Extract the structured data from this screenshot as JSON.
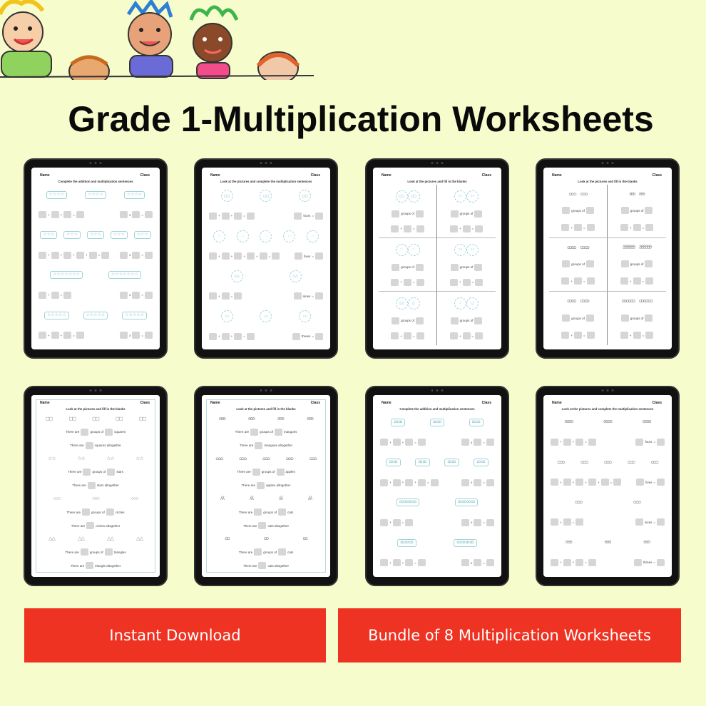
{
  "title": "Grade 1-Multiplication Worksheets",
  "colors": {
    "background": "#f6fccb",
    "button": "#ee3322",
    "picture_outline": "#9fd3d8"
  },
  "buttons": {
    "instant_download": "Instant Download",
    "bundle": "Bundle of 8 Multiplication Worksheets"
  },
  "worksheets": [
    {
      "name": "Name",
      "class": "Class",
      "instruction": "Complete the addition and multiplication sentences",
      "layout": "rows",
      "rows": [
        {
          "pics": [
            "☆☆☆☆",
            "☆☆☆☆",
            "☆☆☆☆"
          ],
          "style": "box"
        },
        {
          "eq": [
            [
              "□",
              "+",
              "□",
              "+",
              "□",
              "=",
              "□"
            ],
            [
              "□",
              "x",
              "□",
              "=",
              "□"
            ]
          ]
        },
        {
          "pics": [
            "☆☆☆",
            "☆☆☆",
            "☆☆☆",
            "☆☆☆",
            "☆☆☆"
          ],
          "style": "box"
        },
        {
          "eq": [
            [
              "□",
              "+",
              "□",
              "+",
              "□",
              "+",
              "□",
              "+",
              "□",
              "=",
              "□"
            ],
            [
              "□",
              "x",
              "□",
              "=",
              "□"
            ]
          ]
        },
        {
          "pics": [
            "☆☆☆☆☆☆☆",
            "☆☆☆☆☆☆☆"
          ],
          "style": "box"
        },
        {
          "eq": [
            [
              "□",
              "+",
              "□",
              "=",
              "□"
            ],
            [
              "□",
              "x",
              "□",
              "=",
              "□"
            ]
          ]
        },
        {
          "pics": [
            "☆☆☆☆☆",
            "☆☆☆☆☆",
            "☆☆☆☆☆"
          ],
          "style": "box"
        },
        {
          "eq": [
            [
              "□",
              "+",
              "□",
              "+",
              "□",
              "=",
              "□"
            ],
            [
              "□",
              "x",
              "□",
              "=",
              "□"
            ]
          ]
        }
      ]
    },
    {
      "name": "Name",
      "class": "Class",
      "instruction": "Look at the pictures and complete the multiplication sentences",
      "layout": "rows",
      "rows": [
        {
          "pics": [
            "◻◻",
            "◻◻",
            "◻◻"
          ],
          "style": "circle"
        },
        {
          "eq": [
            [
              "□",
              "+",
              "□",
              "+",
              "□",
              "=",
              "□"
            ],
            [
              "□",
              "fours",
              "=",
              "□"
            ]
          ]
        },
        {
          "pics": [
            "∷",
            "∷",
            "∷",
            "∷",
            "∷"
          ],
          "style": "circle"
        },
        {
          "eq": [
            [
              "□",
              "+",
              "□",
              "+",
              "□",
              "+",
              "□",
              "+",
              "□",
              "=",
              "□"
            ],
            [
              "□",
              "fives",
              "=",
              "□"
            ]
          ]
        },
        {
          "pics": [
            "△△",
            "△△"
          ],
          "style": "circle"
        },
        {
          "eq": [
            [
              "□",
              "+",
              "□",
              "=",
              "□"
            ],
            [
              "□",
              "nines",
              "=",
              "□"
            ]
          ]
        },
        {
          "pics": [
            "○○",
            "○○",
            "○○"
          ],
          "style": "circle"
        },
        {
          "eq": [
            [
              "□",
              "+",
              "□",
              "+",
              "□",
              "=",
              "□"
            ],
            [
              "□",
              "threes",
              "=",
              "□"
            ]
          ]
        }
      ]
    },
    {
      "name": "Name",
      "class": "Class",
      "instruction": "Look at the pictures and fill in the blanks",
      "layout": "grid",
      "cell_pics": [
        [
          "◻◻",
          "◻◻"
        ],
        [
          "○○",
          "○○"
        ],
        [
          "∷",
          "∷"
        ],
        [
          "○○",
          "○○"
        ],
        [
          "△△",
          "△"
        ],
        [
          "○",
          "◻"
        ]
      ],
      "style": "circle",
      "cell_eq": [
        [
          "□",
          "groups of",
          "□"
        ],
        [
          "□",
          "+",
          "□",
          "=",
          "□"
        ]
      ]
    },
    {
      "name": "Name",
      "class": "Class",
      "instruction": "Look at the pictures and fill in the blanks",
      "layout": "grid",
      "cell_pics": [
        [
          "ᴑᴑᴑ",
          "ᴑᴑᴑ"
        ],
        [
          "ʚʚʚ",
          "ʚʚʚ"
        ],
        [
          "ꝏꝏ",
          "ꝏꝏ"
        ],
        [
          "ϑϑϑϑϑϑ",
          "ϑϑϑϑϑϑ"
        ],
        [
          "ꝏꝏ",
          "ꝏꝏ"
        ],
        [
          "ꝏꝏꝏ",
          "ꝏꝏꝏ"
        ]
      ],
      "style": "grey",
      "cell_eq": [
        [
          "□",
          "groups of",
          "□"
        ],
        [
          "□",
          "+",
          "□",
          "=",
          "□"
        ]
      ]
    },
    {
      "name": "Name",
      "class": "Class",
      "instruction": "Look at the pictures and fill in the blanks",
      "layout": "rows",
      "framed": true,
      "rows": [
        {
          "pics": [
            "◻◻",
            "◻◻",
            "◻◻",
            "◻◻",
            "◻◻"
          ],
          "style": "plain"
        },
        {
          "eq": [
            [
              "There are",
              "□",
              "groups of",
              "□",
              "squares"
            ]
          ]
        },
        {
          "eq": [
            [
              "There are",
              "□",
              "squares  altogether"
            ]
          ]
        },
        {
          "pics": [
            "☆☆",
            "☆☆",
            "☆☆",
            "☆☆"
          ],
          "style": "plain"
        },
        {
          "eq": [
            [
              "There are",
              "□",
              "groups of",
              "□",
              "stars"
            ]
          ]
        },
        {
          "eq": [
            [
              "There are",
              "□",
              "stars  altogether"
            ]
          ]
        },
        {
          "pics": [
            "○○○",
            "○○○",
            "○○○"
          ],
          "style": "plain"
        },
        {
          "eq": [
            [
              "There are",
              "□",
              "groups of",
              "□",
              "circles"
            ]
          ]
        },
        {
          "eq": [
            [
              "There are",
              "□",
              "circles  altogether"
            ]
          ]
        },
        {
          "pics": [
            "△△",
            "△△",
            "△△",
            "△△"
          ],
          "style": "plain"
        },
        {
          "eq": [
            [
              "There are",
              "□",
              "groups of",
              "□",
              "triangles"
            ]
          ]
        },
        {
          "eq": [
            [
              "There are",
              "□",
              "triangle  altogether"
            ]
          ]
        }
      ]
    },
    {
      "name": "Name",
      "class": "Class",
      "instruction": "Look at the pictures and fill in the blanks",
      "layout": "rows",
      "framed": true,
      "rows": [
        {
          "pics": [
            "ϭϭϭ",
            "ϭϭϭ",
            "ϭϭϭ",
            "ϭϭϭ"
          ],
          "style": "grey"
        },
        {
          "eq": [
            [
              "There are",
              "□",
              "groups of",
              "□",
              "mangoes"
            ]
          ]
        },
        {
          "eq": [
            [
              "There are",
              "□",
              "mangoes  altogether"
            ]
          ]
        },
        {
          "pics": [
            "ᴑᴑᴑ",
            "ᴑᴑᴑ",
            "ᴑᴑᴑ",
            "ᴑᴑᴑ",
            "ᴑᴑᴑ"
          ],
          "style": "grey"
        },
        {
          "eq": [
            [
              "There are",
              "□",
              "groups of",
              "□",
              "apples"
            ]
          ]
        },
        {
          "eq": [
            [
              "There are",
              "□",
              "apples  altogether"
            ]
          ]
        },
        {
          "pics": [
            "ʎʎ",
            "ʎʎ",
            "ʎʎ",
            "ʎʎ"
          ],
          "style": "grey"
        },
        {
          "eq": [
            [
              "There are",
              "□",
              "groups of",
              "□",
              "cats"
            ]
          ]
        },
        {
          "eq": [
            [
              "There are",
              "□",
              "cats  altogether"
            ]
          ]
        },
        {
          "pics": [
            "ꝏ",
            "ꝏ",
            "ꝏ"
          ],
          "style": "grey"
        },
        {
          "eq": [
            [
              "There are",
              "□",
              "groups of",
              "□",
              "cats"
            ]
          ]
        },
        {
          "eq": [
            [
              "There are",
              "□",
              "cats  altogether"
            ]
          ]
        }
      ]
    },
    {
      "name": "Name",
      "class": "Class",
      "instruction": "Complete the addition and multiplication sentences",
      "layout": "rows",
      "rows": [
        {
          "pics": [
            "ꝏꝏ",
            "ꝏꝏ",
            "ꝏꝏ"
          ],
          "style": "box"
        },
        {
          "eq": [
            [
              "□",
              "+",
              "□",
              "+",
              "□",
              "=",
              "□"
            ],
            [
              "□",
              "x",
              "□",
              "=",
              "□"
            ]
          ]
        },
        {
          "pics": [
            "ꝏꝏ",
            "ꝏꝏ",
            "ꝏꝏ",
            "ꝏꝏ"
          ],
          "style": "box"
        },
        {
          "eq": [
            [
              "□",
              "+",
              "□",
              "+",
              "□",
              "+",
              "□",
              "=",
              "□"
            ],
            [
              "□",
              "x",
              "□",
              "=",
              "□"
            ]
          ]
        },
        {
          "pics": [
            "ꝏꝏꝏꝏ",
            "ꝏꝏꝏꝏ"
          ],
          "style": "box"
        },
        {
          "eq": [
            [
              "□",
              "+",
              "□",
              "=",
              "□"
            ],
            [
              "□",
              "x",
              "□",
              "=",
              "□"
            ]
          ]
        },
        {
          "pics": [
            "ꝏꝏꝏ",
            "ꝏꝏꝏꝏ"
          ],
          "style": "box"
        },
        {
          "eq": [
            [
              "□",
              "+",
              "□",
              "+",
              "□",
              "=",
              "□"
            ],
            [
              "□",
              "x",
              "□",
              "=",
              "□"
            ]
          ]
        }
      ]
    },
    {
      "name": "Name",
      "class": "Class",
      "instruction": "Look at the pictures and complete the multiplication sentences",
      "layout": "rows",
      "rows": [
        {
          "pics": [
            "ϭϭϭϭ",
            "ϭϭϭϭ",
            "ϭϭϭϭ"
          ],
          "style": "grey"
        },
        {
          "eq": [
            [
              "□",
              "+",
              "□",
              "+",
              "□",
              "=",
              "□"
            ],
            [
              "□",
              "fours",
              "=",
              "□"
            ]
          ]
        },
        {
          "pics": [
            "ᴑᴑᴑ",
            "ᴑᴑᴑ",
            "ᴑᴑᴑ",
            "ᴑᴑᴑ",
            "ᴑᴑᴑ"
          ],
          "style": "grey"
        },
        {
          "eq": [
            [
              "□",
              "+",
              "□",
              "+",
              "□",
              "+",
              "□",
              "+",
              "□",
              "=",
              "□"
            ],
            [
              "□",
              "fives",
              "=",
              "□"
            ]
          ]
        },
        {
          "pics": [
            "ᴑᴑᴑ",
            "ᴑᴑᴑ"
          ],
          "style": "grey"
        },
        {
          "eq": [
            [
              "□",
              "+",
              "□",
              "=",
              "□"
            ],
            [
              "□",
              "sixes",
              "=",
              "□"
            ]
          ]
        },
        {
          "pics": [
            "ϭϭϭ",
            "ϭϭϭ",
            "ϭϭϭ"
          ],
          "style": "grey"
        },
        {
          "eq": [
            [
              "□",
              "+",
              "□",
              "+",
              "□",
              "=",
              "□"
            ],
            [
              "□",
              "threes",
              "=",
              "□"
            ]
          ]
        }
      ]
    }
  ]
}
